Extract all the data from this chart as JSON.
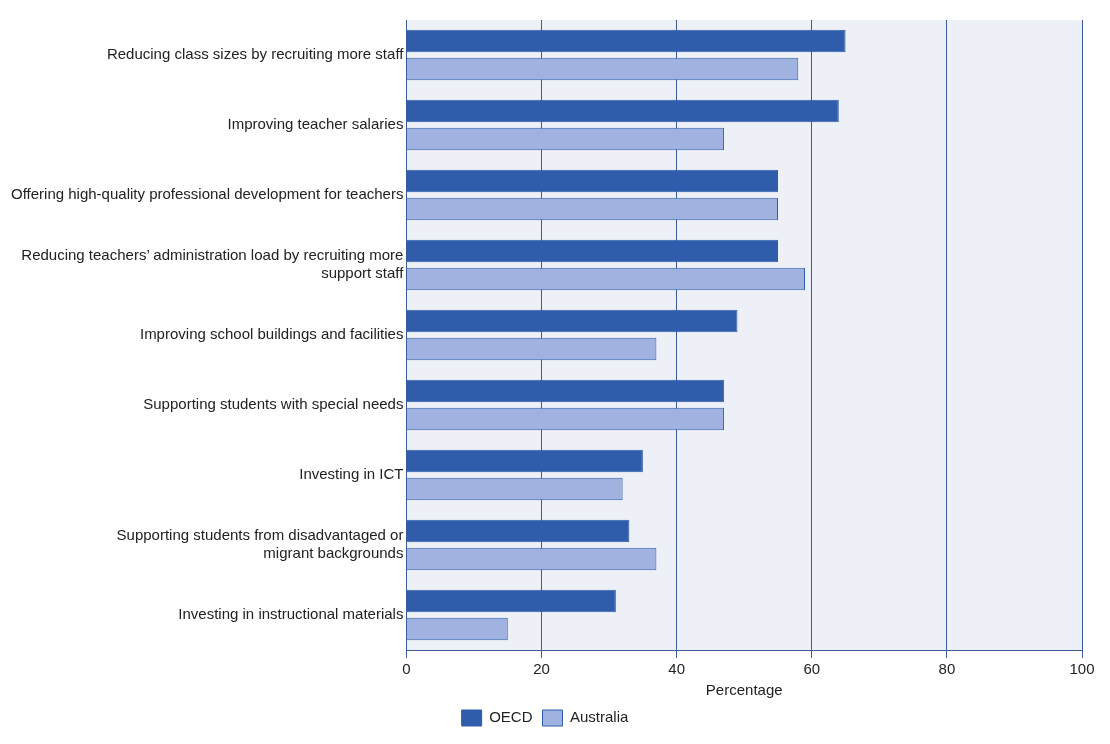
{
  "chart_data": {
    "type": "bar",
    "orientation": "horizontal",
    "xlabel": "Percentage",
    "categories": [
      "Reducing class sizes by recruiting more staff",
      "Improving teacher salaries",
      "Offering high-quality professional development for teachers",
      "Reducing teachers’ administration load by recruiting more\nsupport staff",
      "Improving school buildings and facilities",
      "Supporting students with special needs",
      "Investing in ICT",
      "Supporting students from disadvantaged or\nmigrant backgrounds",
      "Investing in instructional materials"
    ],
    "series": [
      {
        "name": "OECD",
        "color": "#2f5dab",
        "values": [
          65,
          64,
          55,
          55,
          49,
          47,
          35,
          33,
          31
        ]
      },
      {
        "name": "Australia",
        "color": "#9fb2e0",
        "values": [
          58,
          47,
          55,
          59,
          37,
          47,
          32,
          37,
          15
        ]
      }
    ],
    "xlim": [
      0,
      100
    ],
    "xticks": [
      0,
      20,
      40,
      60,
      80,
      100
    ],
    "grid": "x",
    "legend": "bottom"
  }
}
